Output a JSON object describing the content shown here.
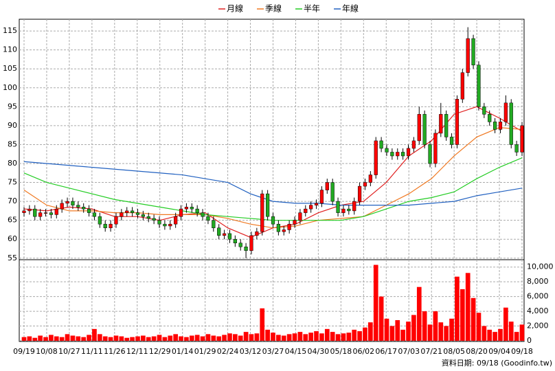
{
  "chart_data": {
    "type": "candlestick",
    "categories": [
      "09/19",
      "10/08",
      "10/27",
      "11/11",
      "11/26",
      "12/11",
      "12/29",
      "01/14",
      "01/29",
      "02/24",
      "03/12",
      "03/27",
      "04/15",
      "04/30",
      "05/18",
      "06/02",
      "06/17",
      "07/03",
      "07/21",
      "08/05",
      "08/20",
      "09/04",
      "09/18"
    ],
    "candles": {
      "up_color": "#ff0000",
      "down_color": "#22aa22",
      "open": [
        67,
        67.5,
        68,
        66,
        67,
        67,
        66.5,
        68,
        69.5,
        70,
        69,
        68.5,
        68,
        67,
        66,
        64,
        63,
        64,
        66,
        67,
        67.5,
        67,
        66.5,
        66,
        65.5,
        65,
        64,
        63.5,
        64,
        66,
        68,
        68.5,
        68,
        67,
        66,
        65,
        63,
        61,
        61.5,
        60,
        59,
        58,
        57,
        61,
        62,
        72,
        66,
        64,
        62,
        62.5,
        64,
        65,
        67,
        68,
        69,
        69.5,
        73,
        75,
        70,
        67,
        68,
        67.5,
        70,
        74,
        75,
        77,
        86,
        84,
        83,
        82,
        83,
        82,
        84,
        86,
        93,
        85,
        80,
        88,
        93,
        87,
        85,
        97,
        104,
        113,
        106,
        95,
        93,
        91,
        89,
        91,
        96,
        85,
        83
      ],
      "high": [
        68.5,
        69,
        69,
        68,
        68,
        68,
        69,
        70.5,
        71,
        71,
        70,
        69.5,
        69,
        68,
        67,
        65,
        65,
        67,
        68,
        68.5,
        68.5,
        68,
        67.5,
        67,
        66.5,
        66,
        65,
        65,
        67,
        69,
        69.5,
        69.5,
        69,
        68,
        67,
        66,
        64,
        62.5,
        62.5,
        61,
        60,
        59,
        62,
        63,
        73,
        73,
        67,
        65,
        63.5,
        65,
        66,
        68,
        69,
        70,
        70.5,
        74,
        76,
        76,
        71,
        69,
        69,
        71,
        75,
        76,
        78,
        87,
        87,
        85,
        84,
        84,
        84,
        85,
        87,
        95,
        94,
        86,
        89,
        96,
        94,
        88,
        98,
        105,
        116,
        114,
        107,
        96,
        94,
        92,
        92,
        98,
        97,
        86,
        91
      ],
      "low": [
        66,
        66.5,
        65,
        65,
        66,
        65.5,
        65.5,
        67,
        68.5,
        68,
        67.5,
        67,
        66,
        65,
        63,
        62,
        62,
        63,
        65,
        66,
        66,
        65.5,
        65,
        64.5,
        64,
        63,
        62.5,
        62.5,
        63,
        65,
        67,
        67,
        66,
        65,
        64,
        62,
        60,
        60,
        59,
        58,
        57,
        55,
        56,
        60,
        61,
        65,
        63,
        61,
        61,
        61.5,
        63,
        64,
        66,
        67,
        68,
        68.5,
        72,
        69,
        66,
        66,
        66.5,
        66.5,
        69,
        73,
        74,
        76,
        83,
        82,
        81,
        81,
        81,
        81,
        83,
        85,
        84,
        79,
        79,
        87,
        86,
        84,
        84,
        96,
        103,
        105,
        94,
        92,
        90,
        88,
        88,
        90,
        84,
        82,
        82
      ],
      "close": [
        67.5,
        68,
        66,
        67,
        67,
        66.5,
        68,
        69.5,
        70,
        69,
        68.5,
        68,
        67,
        66,
        64,
        63,
        64,
        66,
        67,
        67.5,
        67,
        66.5,
        66,
        65.5,
        65,
        64,
        63.5,
        64,
        66,
        68,
        68.5,
        68,
        67,
        66,
        65,
        63,
        61,
        61.5,
        60,
        59,
        58,
        57,
        61,
        62,
        72,
        66,
        64,
        62,
        62.5,
        64,
        65,
        67,
        68,
        69,
        69.5,
        73,
        75,
        70,
        67,
        68,
        67.5,
        70,
        74,
        75,
        77,
        86,
        84,
        83,
        82,
        83,
        82,
        84,
        86,
        93,
        85,
        80,
        88,
        93,
        87,
        85,
        97,
        104,
        113,
        106,
        95,
        93,
        91,
        89,
        91,
        96,
        85,
        83,
        90
      ]
    },
    "series": [
      {
        "name": "月線",
        "color": "#e02020",
        "values": [
          68,
          67.5,
          68.5,
          68,
          66,
          66,
          65,
          66.5,
          67,
          63,
          60.5,
          63,
          64,
          67,
          69,
          70,
          75,
          82,
          86,
          93,
          95,
          92,
          88.5
        ]
      },
      {
        "name": "季線",
        "color": "#f07820",
        "values": [
          73,
          69,
          67.5,
          67.5,
          67,
          67,
          66.5,
          66.5,
          66.5,
          65.5,
          64,
          63,
          63.5,
          65,
          65.5,
          66,
          69,
          72,
          76,
          82,
          87,
          89.5,
          89
        ]
      },
      {
        "name": "半年",
        "color": "#22cc22",
        "values": [
          77.5,
          75,
          73.5,
          72,
          70.5,
          69.5,
          68.5,
          67.5,
          66.5,
          66,
          65.5,
          65,
          65,
          65,
          65,
          66,
          68,
          70,
          71,
          72.5,
          76,
          79,
          81.5
        ]
      },
      {
        "name": "年線",
        "color": "#2060c0",
        "values": [
          80.5,
          80,
          79.5,
          79,
          78.5,
          78,
          77.5,
          77,
          76,
          75,
          72,
          70,
          69.5,
          69.5,
          69,
          69,
          69,
          69,
          69.5,
          70,
          71.5,
          72.5,
          73.5
        ]
      }
    ],
    "ylim": [
      54.6,
      118.1
    ],
    "yticks": [
      55,
      60,
      65,
      70,
      75,
      80,
      85,
      90,
      95,
      100,
      105,
      110,
      115
    ],
    "grid": true,
    "volume": {
      "color": "#ff0000",
      "values": [
        500,
        600,
        400,
        700,
        500,
        800,
        600,
        500,
        900,
        700,
        600,
        500,
        800,
        1600,
        900,
        600,
        500,
        700,
        600,
        400,
        500,
        600,
        700,
        500,
        600,
        800,
        500,
        700,
        900,
        600,
        500,
        700,
        800,
        600,
        900,
        700,
        600,
        800,
        1000,
        900,
        700,
        1200,
        900,
        1000,
        4400,
        1500,
        1100,
        800,
        700,
        900,
        1000,
        1200,
        900,
        1100,
        1300,
        1000,
        1600,
        1200,
        900,
        1000,
        1100,
        1500,
        1300,
        1800,
        2500,
        10300,
        6000,
        3000,
        2000,
        2800,
        1500,
        2600,
        3500,
        7300,
        4000,
        2200,
        4000,
        2500,
        2000,
        3000,
        8700,
        7000,
        9200,
        5800,
        3800,
        2000,
        1500,
        1200,
        1600,
        4500,
        2600,
        1200,
        2200
      ],
      "ylim": [
        0,
        11000
      ],
      "yticks": [
        0,
        {
          "value": 2000,
          "label": "2,000"
        },
        {
          "value": 4000,
          "label": "4,000"
        },
        {
          "value": 6000,
          "label": "6,000"
        },
        {
          "value": 8000,
          "label": "8,000"
        },
        {
          "value": 10000,
          "label": "10,000"
        }
      ]
    },
    "footer": "資料日期: 09/18 (Goodinfo.tw)"
  }
}
